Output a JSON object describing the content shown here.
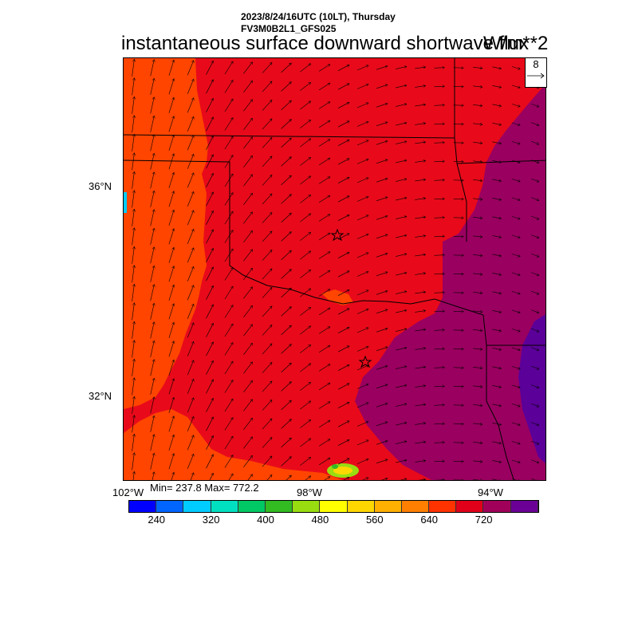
{
  "header": {
    "line1": "2023/8/24/16UTC (10LT), Thursday",
    "line2": "FV3M0B2L1_GFS025",
    "main_title": "instantaneous surface downward shortwave flux",
    "units": "W/m**2"
  },
  "vector_reference": {
    "value": "8"
  },
  "map": {
    "lat_labels": [
      "36°N",
      "32°N"
    ],
    "lon_labels": [
      "102°W",
      "98°W",
      "94°W"
    ],
    "markers": [
      "star",
      "star"
    ],
    "stats": "Min= 237.8 Max= 772.2"
  },
  "colorbar": {
    "colors": [
      "#0000ff",
      "#0066ff",
      "#00ccff",
      "#00e0c0",
      "#00c864",
      "#33bb22",
      "#99dd11",
      "#ffff00",
      "#ffd700",
      "#ffb000",
      "#ff8000",
      "#ff3300",
      "#e0001a",
      "#a0005a",
      "#6a0095"
    ],
    "labels": [
      "240",
      "320",
      "400",
      "480",
      "560",
      "640",
      "720"
    ]
  },
  "colors": {
    "fill_low": "#ff4500",
    "fill_mid": "#e80a1a",
    "fill_high": "#9a0060",
    "fill_top": "#5b0099"
  }
}
